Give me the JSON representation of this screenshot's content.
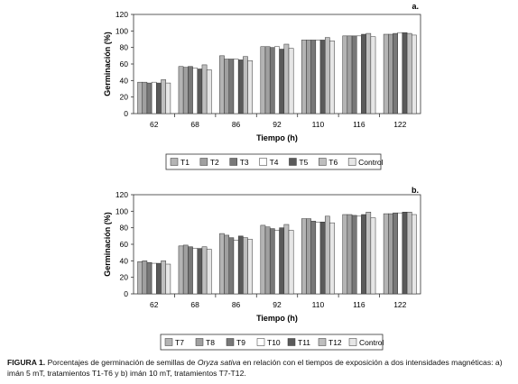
{
  "chart_data": [
    {
      "type": "bar",
      "panel_label": "a.",
      "ylabel": "Germinación (%)",
      "xlabel": "Tiempo (h)",
      "ylim": [
        0,
        120
      ],
      "yticks": [
        0,
        20,
        40,
        60,
        80,
        100,
        120
      ],
      "grid": false,
      "legend_position": "bottom",
      "categories": [
        "62",
        "68",
        "86",
        "92",
        "110",
        "116",
        "122"
      ],
      "series": [
        {
          "name": "T1",
          "values": [
            38,
            57,
            70,
            81,
            89,
            94,
            96
          ]
        },
        {
          "name": "T2",
          "values": [
            38,
            56,
            66,
            81,
            89,
            94,
            96
          ]
        },
        {
          "name": "T3",
          "values": [
            37,
            57,
            66,
            80,
            89,
            94,
            97
          ]
        },
        {
          "name": "T4",
          "values": [
            38,
            55,
            66,
            81,
            89,
            94,
            98
          ]
        },
        {
          "name": "T5",
          "values": [
            37,
            54,
            65,
            78,
            89,
            96,
            98
          ]
        },
        {
          "name": "T6",
          "values": [
            41,
            59,
            69,
            84,
            92,
            97,
            97
          ]
        },
        {
          "name": "Control",
          "values": [
            37,
            53,
            64,
            79,
            88,
            93,
            95
          ]
        }
      ]
    },
    {
      "type": "bar",
      "panel_label": "b.",
      "ylabel": "Germinación (%)",
      "xlabel": "Tiempo (h)",
      "ylim": [
        0,
        120
      ],
      "yticks": [
        0,
        20,
        40,
        60,
        80,
        100,
        120
      ],
      "grid": false,
      "legend_position": "bottom",
      "categories": [
        "62",
        "68",
        "86",
        "92",
        "110",
        "116",
        "122"
      ],
      "series": [
        {
          "name": "T7",
          "values": [
            39,
            58,
            73,
            83,
            91,
            96,
            97
          ]
        },
        {
          "name": "T8",
          "values": [
            40,
            59,
            71,
            81,
            91,
            96,
            97
          ]
        },
        {
          "name": "T9",
          "values": [
            38,
            57,
            68,
            79,
            88,
            95,
            98
          ]
        },
        {
          "name": "T10",
          "values": [
            37,
            55,
            65,
            77,
            87,
            94,
            98
          ]
        },
        {
          "name": "T11",
          "values": [
            37,
            55,
            70,
            80,
            87,
            96,
            99
          ]
        },
        {
          "name": "T12",
          "values": [
            40,
            57,
            68,
            84,
            94,
            99,
            99
          ]
        },
        {
          "name": "Control",
          "values": [
            36,
            54,
            66,
            77,
            86,
            92,
            96
          ]
        }
      ]
    }
  ],
  "series_colors": [
    "#b4b4b4",
    "#a0a0a0",
    "#787878",
    "#ffffff",
    "#5a5a5a",
    "#bebebe",
    "#e6e6e6"
  ],
  "caption": {
    "label": "FIGURA 1.",
    "text_before": " Porcentajes de germinación de semillas de ",
    "species": "Oryza sativa",
    "text_after": " en relación con el tiempos de exposición a dos intensidades magnéticas: a) imán 5 mT, tratamientos T1-T6 y b) imán 10 mT, tratamientos T7-T12."
  }
}
